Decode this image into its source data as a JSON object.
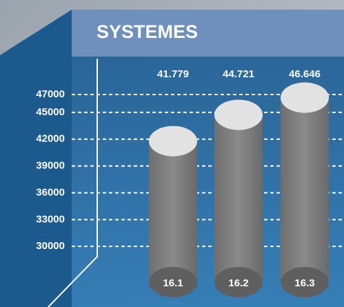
{
  "chart_data": {
    "type": "bar",
    "title": "SYSTEMES",
    "categories": [
      "16.1",
      "16.2",
      "16.3"
    ],
    "values": [
      41779,
      44721,
      46646
    ],
    "value_labels": [
      "41.779",
      "44.721",
      "46.646"
    ],
    "color": "#7a7a7a",
    "ylim": [
      26000,
      48000
    ],
    "yticks": [
      47000,
      45000,
      42000,
      39000,
      36000,
      33000,
      30000
    ],
    "grid": true
  }
}
